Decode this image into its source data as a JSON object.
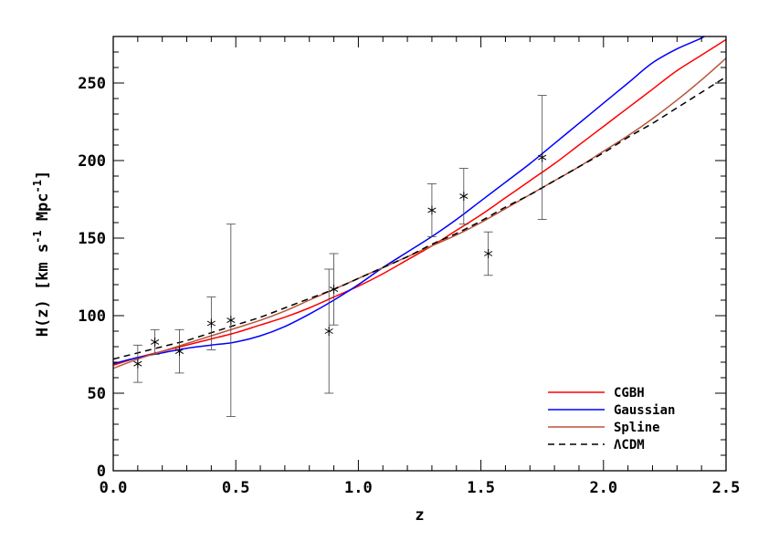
{
  "chart_data": {
    "type": "line",
    "xlabel": "z",
    "ylabel_parts": {
      "main": "H(z) [km s",
      "sup1": "-1",
      "mid": " Mpc",
      "sup2": "-1",
      "end": "]"
    },
    "xlim": [
      0.0,
      2.5
    ],
    "ylim": [
      0,
      280
    ],
    "xticks": [
      0.0,
      0.5,
      1.0,
      1.5,
      2.0,
      2.5
    ],
    "xtick_labels": [
      "0.0",
      "0.5",
      "1.0",
      "1.5",
      "2.0",
      "2.5"
    ],
    "yticks": [
      0,
      50,
      100,
      150,
      200,
      250
    ],
    "ytick_labels": [
      "0",
      "50",
      "100",
      "150",
      "200",
      "250"
    ],
    "grid": false,
    "legend_position": "bottom-right",
    "observations": [
      {
        "z": 0.1,
        "H": 69,
        "err": 12
      },
      {
        "z": 0.17,
        "H": 83,
        "err": 8
      },
      {
        "z": 0.27,
        "H": 77,
        "err": 14
      },
      {
        "z": 0.4,
        "H": 95,
        "err": 17
      },
      {
        "z": 0.48,
        "H": 97,
        "err": 62
      },
      {
        "z": 0.88,
        "H": 90,
        "err": 40
      },
      {
        "z": 0.9,
        "H": 117,
        "err": 23
      },
      {
        "z": 1.3,
        "H": 168,
        "err": 17
      },
      {
        "z": 1.43,
        "H": 177,
        "err": 18
      },
      {
        "z": 1.53,
        "H": 140,
        "err": 14
      },
      {
        "z": 1.75,
        "H": 202,
        "err": 40
      }
    ],
    "series": [
      {
        "name": "CGBH",
        "color": "#ff0000",
        "dash": "solid",
        "x": [
          0.0,
          0.1,
          0.2,
          0.3,
          0.4,
          0.5,
          0.6,
          0.7,
          0.8,
          0.9,
          1.0,
          1.1,
          1.2,
          1.3,
          1.4,
          1.5,
          1.6,
          1.7,
          1.8,
          1.9,
          2.0,
          2.1,
          2.2,
          2.3,
          2.4,
          2.5
        ],
        "y": [
          68,
          73,
          77,
          81,
          85,
          89,
          94,
          99,
          105,
          112,
          119,
          127,
          136,
          145,
          155,
          165,
          176,
          187,
          198,
          210,
          222,
          234,
          246,
          258,
          268,
          278
        ]
      },
      {
        "name": "Gaussian",
        "color": "#0000ff",
        "dash": "solid",
        "x": [
          0.0,
          0.1,
          0.2,
          0.3,
          0.4,
          0.5,
          0.6,
          0.7,
          0.8,
          0.9,
          1.0,
          1.1,
          1.2,
          1.3,
          1.4,
          1.5,
          1.6,
          1.7,
          1.8,
          1.9,
          2.0,
          2.1,
          2.2,
          2.3,
          2.4,
          2.45
        ],
        "y": [
          69,
          73,
          76,
          79,
          81,
          83,
          87,
          93,
          101,
          110,
          120,
          131,
          141,
          151,
          162,
          174,
          186,
          198,
          211,
          224,
          237,
          250,
          263,
          272,
          279,
          284
        ]
      },
      {
        "name": "Spline",
        "color": "#b8553a",
        "dash": "solid",
        "x": [
          0.0,
          0.1,
          0.2,
          0.3,
          0.4,
          0.5,
          0.6,
          0.7,
          0.8,
          0.9,
          1.0,
          1.1,
          1.2,
          1.3,
          1.4,
          1.5,
          1.6,
          1.7,
          1.8,
          1.9,
          2.0,
          2.1,
          2.2,
          2.3,
          2.4,
          2.5
        ],
        "y": [
          66,
          72,
          77,
          82,
          87,
          92,
          97,
          103,
          110,
          117,
          124,
          131,
          138,
          145,
          152,
          160,
          169,
          178,
          187,
          196,
          206,
          216,
          227,
          239,
          252,
          266
        ]
      },
      {
        "name": "ΛCDM",
        "color": "#000000",
        "dash": "dashed",
        "x": [
          0.0,
          0.1,
          0.2,
          0.3,
          0.4,
          0.5,
          0.6,
          0.7,
          0.8,
          0.9,
          1.0,
          1.1,
          1.2,
          1.3,
          1.4,
          1.5,
          1.6,
          1.7,
          1.8,
          1.9,
          2.0,
          2.1,
          2.2,
          2.3,
          2.4,
          2.5
        ],
        "y": [
          72,
          76,
          80,
          84,
          89,
          94,
          99,
          105,
          111,
          117,
          124,
          131,
          138,
          146,
          153,
          161,
          170,
          178,
          187,
          196,
          205,
          215,
          224,
          234,
          244,
          254
        ]
      }
    ]
  }
}
